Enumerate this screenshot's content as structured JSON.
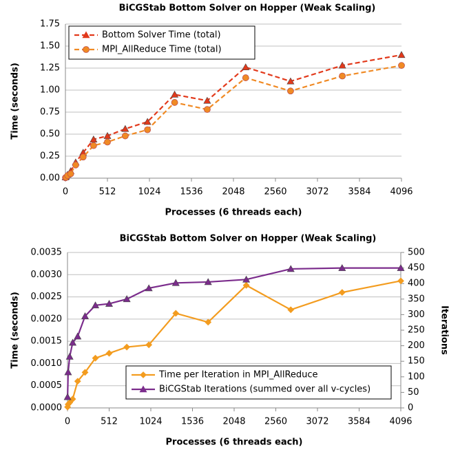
{
  "chart_data": [
    {
      "type": "line",
      "title": "BiCGStab Bottom Solver on Hopper (Weak Scaling)",
      "xlabel": "Processes (6 threads each)",
      "ylabel": "Time (seconds)",
      "xlim": [
        0,
        4096
      ],
      "xticks": [
        0,
        512,
        1024,
        1536,
        2048,
        2560,
        3072,
        3584,
        4096
      ],
      "ylim": [
        0,
        1.75
      ],
      "yticks": [
        {
          "value": 0,
          "label": "0.00"
        },
        {
          "value": 0.25,
          "label": "0.25"
        },
        {
          "value": 0.5,
          "label": "0.50"
        },
        {
          "value": 0.75,
          "label": "0.75"
        },
        {
          "value": 1,
          "label": "1.00"
        },
        {
          "value": 1.25,
          "label": "1.25"
        },
        {
          "value": 1.5,
          "label": "1.50"
        },
        {
          "value": 1.75,
          "label": "1.75"
        }
      ],
      "grid": true,
      "legend": "upper left",
      "x": [
        1,
        8,
        27,
        64,
        125,
        216,
        343,
        512,
        729,
        1000,
        1331,
        1728,
        2197,
        2744,
        3375,
        4096
      ],
      "series": [
        {
          "name": "Bottom Solver Time (total)",
          "color": "#e2391b",
          "marker": "triangle",
          "dashed": true,
          "values": [
            0.01,
            0.02,
            0.04,
            0.08,
            0.18,
            0.29,
            0.44,
            0.48,
            0.56,
            0.64,
            0.95,
            0.88,
            1.26,
            1.1,
            1.28,
            1.4
          ]
        },
        {
          "name": "MPI_AllReduce Time (total)",
          "color": "#f08a24",
          "marker": "circle",
          "dashed": true,
          "values": [
            0.005,
            0.01,
            0.03,
            0.05,
            0.15,
            0.24,
            0.37,
            0.41,
            0.48,
            0.55,
            0.86,
            0.78,
            1.14,
            0.99,
            1.16,
            1.28
          ]
        }
      ]
    },
    {
      "type": "line",
      "title": "BiCGStab Bottom Solver on Hopper (Weak Scaling)",
      "xlabel": "Processes (6 threads each)",
      "ylabel": "Time (seconds)",
      "y2label": "Iterations",
      "xlim": [
        0,
        4096
      ],
      "xticks": [
        0,
        512,
        1024,
        1536,
        2048,
        2560,
        3072,
        3584,
        4096
      ],
      "ylim": [
        0,
        0.0035
      ],
      "yticks": [
        {
          "value": 0,
          "label": "0.0000"
        },
        {
          "value": 0.0005,
          "label": "0.0005"
        },
        {
          "value": 0.001,
          "label": "0.0010"
        },
        {
          "value": 0.0015,
          "label": "0.0015"
        },
        {
          "value": 0.002,
          "label": "0.0020"
        },
        {
          "value": 0.0025,
          "label": "0.0025"
        },
        {
          "value": 0.003,
          "label": "0.0030"
        },
        {
          "value": 0.0035,
          "label": "0.0035"
        }
      ],
      "y2lim": [
        0,
        500
      ],
      "y2ticks": [
        0,
        50,
        100,
        150,
        200,
        250,
        300,
        350,
        400,
        450,
        500
      ],
      "grid": true,
      "legend": "lower right",
      "x": [
        1,
        8,
        27,
        64,
        125,
        216,
        343,
        512,
        729,
        1000,
        1331,
        1728,
        2197,
        2744,
        3375,
        4096
      ],
      "series": [
        {
          "name": "Time per Iteration in MPI_AllReduce",
          "color": "#f39c1f",
          "marker": "diamond",
          "dashed": false,
          "values": [
            2e-05,
            8e-05,
            0.00012,
            0.0002,
            0.0006,
            0.0008,
            0.00112,
            0.00123,
            0.00137,
            0.00142,
            0.00213,
            0.00193,
            0.00276,
            0.00221,
            0.0026,
            0.00286
          ]
        },
        {
          "name": "BiCGStab Iterations (summed over all v-cycles)",
          "color": "#7b2c8c",
          "marker": "triangle",
          "dashed": false,
          "axis": "y2",
          "values": [
            35,
            115,
            165,
            210,
            230,
            295,
            330,
            335,
            350,
            385,
            402,
            405,
            413,
            447,
            450,
            450
          ]
        }
      ]
    }
  ]
}
